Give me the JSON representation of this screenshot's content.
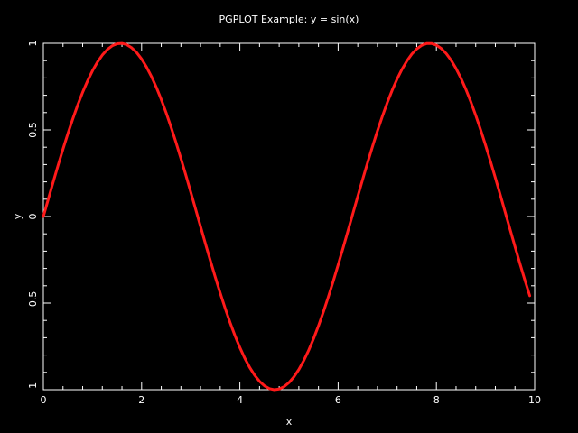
{
  "colors": {
    "background": "#000000",
    "axes": "#ffffff",
    "series": "#ff1a1a"
  },
  "chart_data": {
    "type": "line",
    "title": "PGPLOT Example: y = sin(x)",
    "xlabel": "x",
    "ylabel": "y",
    "xlim": [
      0,
      10
    ],
    "ylim": [
      -1,
      1
    ],
    "xticks": [
      0,
      2,
      4,
      6,
      8,
      10
    ],
    "xtick_labels": [
      "0",
      "2",
      "4",
      "6",
      "8",
      "10"
    ],
    "yticks": [
      -1,
      -0.5,
      0,
      0.5,
      1
    ],
    "ytick_labels": [
      "−1",
      "−0.5",
      "0",
      "0.5",
      "1"
    ],
    "x_minor_step": 0.4,
    "y_minor_step": 0.1,
    "grid": false,
    "series": [
      {
        "x": [
          0,
          0.1,
          0.2,
          0.3,
          0.4,
          0.5,
          0.6,
          0.7,
          0.8,
          0.9,
          1.0,
          1.1,
          1.2,
          1.3,
          1.4,
          1.5,
          1.6,
          1.7,
          1.8,
          1.9,
          2.0,
          2.1,
          2.2,
          2.3,
          2.4,
          2.5,
          2.6,
          2.7,
          2.8,
          2.9,
          3.0,
          3.1,
          3.2,
          3.3,
          3.4,
          3.5,
          3.6,
          3.7,
          3.8,
          3.9,
          4.0,
          4.1,
          4.2,
          4.3,
          4.4,
          4.5,
          4.6,
          4.7,
          4.8,
          4.9,
          5.0,
          5.1,
          5.2,
          5.3,
          5.4,
          5.5,
          5.6,
          5.7,
          5.8,
          5.9,
          6.0,
          6.1,
          6.2,
          6.3,
          6.4,
          6.5,
          6.6,
          6.7,
          6.8,
          6.9,
          7.0,
          7.1,
          7.2,
          7.3,
          7.4,
          7.5,
          7.6,
          7.7,
          7.8,
          7.9,
          8.0,
          8.1,
          8.2,
          8.3,
          8.4,
          8.5,
          8.6,
          8.7,
          8.8,
          8.9,
          9.0,
          9.1,
          9.2,
          9.3,
          9.4,
          9.5,
          9.6,
          9.7,
          9.8,
          9.9
        ],
        "y": [
          0.0,
          0.0998,
          0.1987,
          0.2955,
          0.3894,
          0.4794,
          0.5646,
          0.6442,
          0.7174,
          0.7833,
          0.8415,
          0.8912,
          0.932,
          0.9636,
          0.9854,
          0.9975,
          0.9996,
          0.9917,
          0.9738,
          0.9463,
          0.9093,
          0.8632,
          0.8085,
          0.7457,
          0.6755,
          0.5985,
          0.5155,
          0.4274,
          0.335,
          0.2392,
          0.1411,
          0.0416,
          -0.0584,
          -0.1577,
          -0.2555,
          -0.3508,
          -0.4425,
          -0.5298,
          -0.6119,
          -0.6878,
          -0.7568,
          -0.8183,
          -0.8716,
          -0.9162,
          -0.9516,
          -0.9775,
          -0.9937,
          -0.9999,
          -0.9962,
          -0.9825,
          -0.9589,
          -0.9258,
          -0.8835,
          -0.8323,
          -0.7728,
          -0.7055,
          -0.6313,
          -0.5507,
          -0.4646,
          -0.3739,
          -0.2794,
          -0.1822,
          -0.0831,
          0.0168,
          0.1165,
          0.2151,
          0.3115,
          0.4048,
          0.4941,
          0.5784,
          0.657,
          0.729,
          0.7937,
          0.8504,
          0.8987,
          0.938,
          0.9679,
          0.9882,
          0.9985,
          0.9989,
          0.9894,
          0.9699,
          0.9407,
          0.9022,
          0.8546,
          0.7985,
          0.7344,
          0.663,
          0.5849,
          0.501,
          0.4121,
          0.319,
          0.2229,
          0.1245,
          0.0248,
          -0.0752,
          -0.1743,
          -0.2718,
          -0.3665,
          -0.4575
        ]
      }
    ]
  }
}
